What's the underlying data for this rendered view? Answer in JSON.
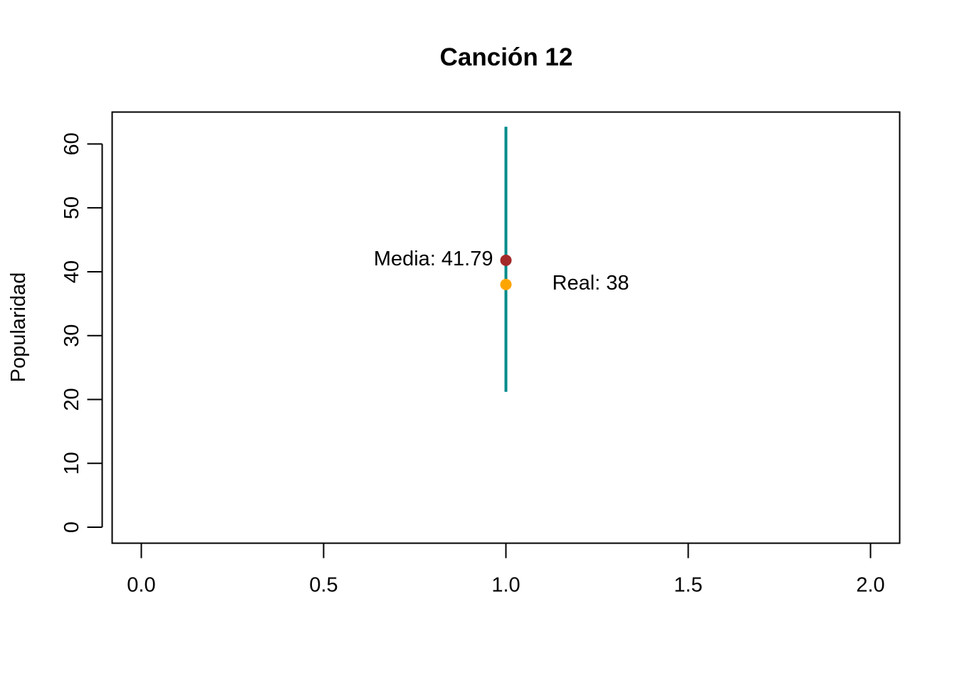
{
  "chart_data": {
    "type": "scatter",
    "title": "Canción 12",
    "xlabel": "",
    "ylabel": "Popularidad",
    "xlim": [
      -0.08,
      2.08
    ],
    "ylim": [
      -2.5,
      65
    ],
    "x_ticks": [
      0.0,
      0.5,
      1.0,
      1.5,
      2.0
    ],
    "x_tick_labels": [
      "0.0",
      "0.5",
      "1.0",
      "1.5",
      "2.0"
    ],
    "y_ticks": [
      0,
      10,
      20,
      30,
      40,
      50,
      60
    ],
    "y_tick_labels": [
      "0",
      "10",
      "20",
      "30",
      "40",
      "50",
      "60"
    ],
    "grid": false,
    "interval": {
      "x": 1.0,
      "low": 21.2,
      "high": 62.7,
      "color": "#008B8B"
    },
    "points": [
      {
        "name": "media",
        "x": 1.0,
        "y": 41.79,
        "color": "#A52A2A",
        "label": "Media: 41.79",
        "label_side": "left"
      },
      {
        "name": "real",
        "x": 1.0,
        "y": 38,
        "color": "#FFA500",
        "label": "Real: 38",
        "label_side": "right"
      }
    ]
  }
}
